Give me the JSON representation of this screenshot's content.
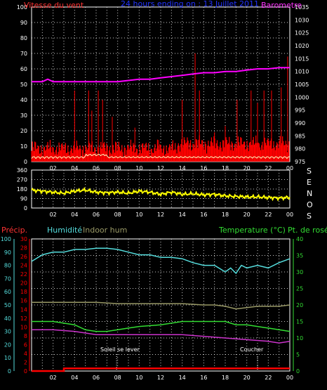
{
  "colors": {
    "background": "#000000",
    "frame": "#ffffff",
    "grid": "#ffffff",
    "wind_avg": "#ff0000",
    "wind_gust": "#ff0000",
    "wind_low": "#ffffc0",
    "barometer": "#ff00ff",
    "direction": "#ffff00",
    "title": "#0000ff",
    "precip": "#ff0000",
    "humidity": "#55dddd",
    "indoor_hum": "#999966",
    "temperature": "#33dd33",
    "dewpoint": "#cc33cc",
    "annotation": "#ffffff"
  },
  "top_panel": {
    "title": "24 hours ending on : 13 Juillet 2011",
    "left_label": "Vitesse du vent",
    "right_label": "Barometre"
  },
  "direction_panel": {
    "compass": [
      "S",
      "E",
      "N",
      "O",
      "S"
    ]
  },
  "bottom_panel": {
    "label_precip": "Précip.",
    "label_humidity": "Humidité",
    "label_indoor": "Indoor hum",
    "label_temperature": "Temperature (°C)",
    "label_dewpoint": "Pt. de rosée",
    "sunrise_label": "Soleil se lever",
    "sunset_label": "Coucher"
  },
  "chart_data": [
    {
      "type": "line",
      "name": "wind-barometer",
      "x_ticks": [
        "02",
        "04",
        "06",
        "08",
        "10",
        "12",
        "14",
        "16",
        "18",
        "20",
        "22",
        "00"
      ],
      "y_left_ticks": [
        0,
        10,
        20,
        30,
        40,
        50,
        60,
        70,
        80,
        90,
        100
      ],
      "y_left_range": [
        0,
        100
      ],
      "y_right_ticks": [
        975,
        980,
        985,
        990,
        995,
        1000,
        1005,
        1010,
        1015,
        1020,
        1025,
        1030,
        1035
      ],
      "y_right_range": [
        975,
        1035
      ],
      "barometer": {
        "x": [
          0,
          1,
          1.5,
          2,
          3,
          4,
          5,
          6,
          7,
          8,
          9,
          10,
          11,
          12,
          13,
          14,
          15,
          16,
          17,
          18,
          19,
          20,
          21,
          22,
          23,
          24
        ],
        "y": [
          1006,
          1006,
          1007,
          1006,
          1006,
          1006,
          1006,
          1006,
          1006,
          1006,
          1006.5,
          1007,
          1007,
          1007.5,
          1008,
          1008.5,
          1009,
          1009.5,
          1009.5,
          1010,
          1010,
          1010.5,
          1011,
          1011,
          1011.5,
          1011.5
        ]
      },
      "wind_baseline": 7,
      "wind_gusts": {
        "x": [
          4.0,
          5.3,
          5.6,
          6.2,
          6.6,
          7.5,
          9.6,
          11.8,
          14.0,
          15.2,
          15.6,
          17.0,
          18.0,
          19.1,
          20.4,
          21.0,
          21.6,
          22.3,
          23.2,
          23.8
        ],
        "y": [
          46,
          46,
          33,
          46,
          40,
          29,
          22,
          14,
          40,
          70,
          46,
          19,
          23,
          40,
          46,
          38,
          46,
          46,
          48,
          68
        ]
      }
    },
    {
      "type": "scatter",
      "name": "wind-direction",
      "y_ticks": [
        0,
        90,
        180,
        270,
        360
      ],
      "y_range": [
        0,
        360
      ],
      "x": [
        0,
        1,
        2,
        3,
        4,
        5,
        6,
        7,
        8,
        9,
        10,
        11,
        12,
        13,
        14,
        15,
        16,
        17,
        18,
        19,
        20,
        21,
        22,
        23,
        24
      ],
      "y": [
        170,
        160,
        150,
        140,
        160,
        170,
        150,
        145,
        150,
        140,
        160,
        150,
        130,
        150,
        130,
        135,
        125,
        130,
        115,
        110,
        105,
        105,
        100,
        95,
        100
      ]
    },
    {
      "type": "line",
      "name": "humidity-temperature",
      "y_precip_ticks": [
        0,
        2,
        4,
        6,
        8,
        10,
        12,
        14,
        16,
        18,
        20,
        22,
        24,
        26,
        28,
        30
      ],
      "y_precip_range": [
        0,
        30
      ],
      "y_humidity_ticks": [
        0,
        10,
        20,
        30,
        40,
        50,
        60,
        70,
        80,
        90,
        100
      ],
      "y_humidity_range": [
        0,
        100
      ],
      "y_temp_ticks": [
        0,
        5,
        10,
        15,
        20,
        25,
        30,
        35,
        40
      ],
      "y_temp_range": [
        0,
        40
      ],
      "humidity": {
        "x": [
          0,
          1,
          2,
          3,
          4,
          5,
          6,
          7,
          8,
          9,
          10,
          11,
          12,
          13,
          14,
          15,
          16,
          17,
          18,
          18.5,
          19,
          19.5,
          20,
          21,
          22,
          23,
          24
        ],
        "y": [
          83,
          88,
          90,
          90,
          92,
          92,
          93,
          93,
          92,
          90,
          88,
          88,
          86,
          86,
          85,
          82,
          80,
          80,
          75,
          78,
          74,
          80,
          78,
          80,
          78,
          82,
          85
        ]
      },
      "indoor_hum": {
        "x": [
          0,
          2,
          4,
          6,
          8,
          10,
          12,
          14,
          16,
          17,
          18,
          19,
          20,
          21,
          22,
          23,
          24
        ],
        "y": [
          52,
          52,
          52,
          52,
          51,
          51,
          51,
          51,
          50,
          50,
          49,
          47,
          48,
          49,
          49,
          49,
          50
        ]
      },
      "temperature": {
        "x": [
          0,
          2,
          4,
          5,
          6,
          7,
          8,
          9,
          10,
          12,
          14,
          16,
          18,
          19,
          20,
          21,
          22,
          23,
          24
        ],
        "y": [
          15,
          15,
          14,
          12.5,
          12,
          12,
          12.5,
          13,
          13.5,
          14,
          15,
          15,
          15,
          14,
          14,
          13.5,
          13,
          12.5,
          12
        ]
      },
      "dewpoint": {
        "x": [
          0,
          2,
          4,
          6,
          7,
          8,
          10,
          12,
          14,
          16,
          18,
          20,
          22,
          23,
          24
        ],
        "y": [
          12.5,
          12.5,
          12,
          11,
          11,
          11,
          11,
          11,
          11,
          10.5,
          10,
          9.5,
          9,
          8.5,
          9
        ]
      },
      "precip": {
        "x": [
          0,
          3,
          3,
          24
        ],
        "y": [
          0,
          0,
          0.6,
          0.6
        ]
      },
      "sunrise_hour": 7.9,
      "sunset_hour": 21.0
    }
  ]
}
